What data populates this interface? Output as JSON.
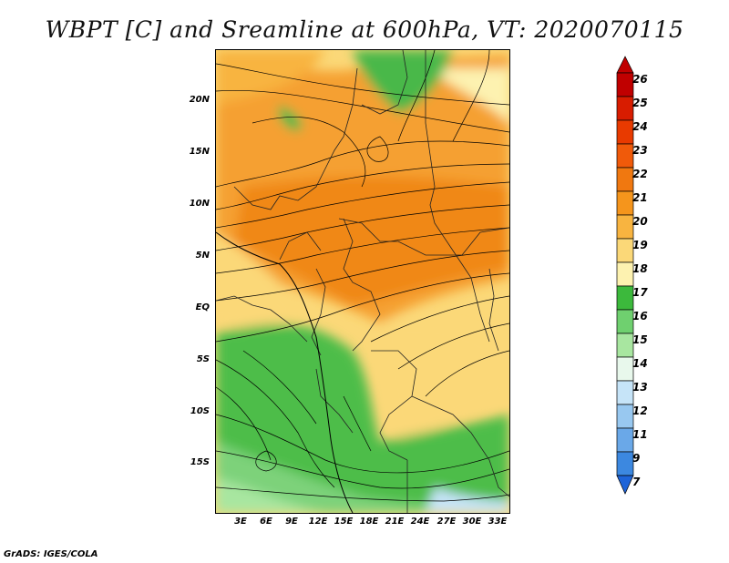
{
  "title": "WBPT [C] and Sreamline at 600hPa, VT: 2020070115",
  "credit": "GrADS: IGES/COLA",
  "lat_labels": [
    "20N",
    "15N",
    "10N",
    "5N",
    "EQ",
    "5S",
    "10S",
    "15S"
  ],
  "lon_labels": [
    "3E",
    "6E",
    "9E",
    "12E",
    "15E",
    "18E",
    "21E",
    "24E",
    "27E",
    "30E",
    "33E"
  ],
  "colorbar": {
    "labels": [
      "26",
      "25",
      "24",
      "23",
      "22",
      "21",
      "20",
      "19",
      "18",
      "17",
      "16",
      "15",
      "14",
      "13",
      "12",
      "11",
      "9",
      "7"
    ],
    "colors": [
      "#c00000",
      "#d81c00",
      "#e83a00",
      "#f05a0a",
      "#f07810",
      "#f5951c",
      "#f8b440",
      "#fbd878",
      "#fdf2b0",
      "#3cb93c",
      "#6fd06f",
      "#a8e6a0",
      "#e8f8ec",
      "#c6e4f8",
      "#98c8f0",
      "#6aa8e8",
      "#3c88e0",
      "#1e64d8"
    ]
  },
  "palette": {
    "orange": "#f5951c",
    "light_orange": "#f8b440",
    "yellow": "#fbd878",
    "pale_yellow": "#fdf2b0",
    "green": "#3cb93c",
    "light_green": "#6fd06f",
    "pale_green": "#a8e6a0",
    "very_pale": "#e8f8ec"
  }
}
